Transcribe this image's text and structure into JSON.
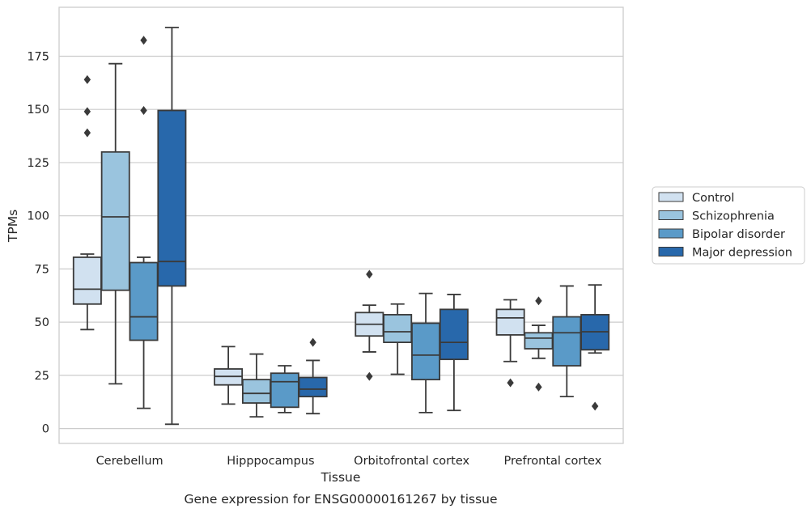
{
  "caption": "Gene expression for ENSG00000161267 by tissue",
  "chart_data": {
    "type": "box",
    "xlabel": "Tissue",
    "ylabel": "TPMs",
    "ylim": [
      -7,
      198
    ],
    "yticks": [
      0,
      25,
      50,
      75,
      100,
      125,
      150,
      175
    ],
    "grid": "horizontal",
    "legend_position": "right",
    "categories": [
      "Cerebellum",
      "Hipppocampus",
      "Orbitofrontal cortex",
      "Prefrontal cortex"
    ],
    "series": [
      {
        "name": "Control",
        "color": "#d1e1f0",
        "boxes": [
          {
            "whisker_low": 46.5,
            "q1": 58.5,
            "median": 65.5,
            "q3": 80.5,
            "whisker_high": 82,
            "outliers": [
              139,
              149,
              164
            ]
          },
          {
            "whisker_low": 11.5,
            "q1": 20.5,
            "median": 24.5,
            "q3": 28,
            "whisker_high": 38.5,
            "outliers": []
          },
          {
            "whisker_low": 36,
            "q1": 43.5,
            "median": 49,
            "q3": 54.5,
            "whisker_high": 58,
            "outliers": [
              72.5,
              24.5
            ]
          },
          {
            "whisker_low": 31.5,
            "q1": 44,
            "median": 52,
            "q3": 56,
            "whisker_high": 60.5,
            "outliers": [
              21.5
            ]
          }
        ]
      },
      {
        "name": "Schizophrenia",
        "color": "#9ac4de",
        "boxes": [
          {
            "whisker_low": 21,
            "q1": 65,
            "median": 99.5,
            "q3": 130,
            "whisker_high": 171.5,
            "outliers": []
          },
          {
            "whisker_low": 5.5,
            "q1": 12,
            "median": 16.5,
            "q3": 23,
            "whisker_high": 35,
            "outliers": []
          },
          {
            "whisker_low": 25.5,
            "q1": 40.5,
            "median": 45.5,
            "q3": 53.5,
            "whisker_high": 58.5,
            "outliers": []
          },
          {
            "whisker_low": 33,
            "q1": 37.5,
            "median": 42.5,
            "q3": 45,
            "whisker_high": 48.5,
            "outliers": [
              60,
              19.5
            ]
          }
        ]
      },
      {
        "name": "Bipolar disorder",
        "color": "#5a9ac8",
        "boxes": [
          {
            "whisker_low": 9.5,
            "q1": 41.5,
            "median": 52.5,
            "q3": 78,
            "whisker_high": 80.5,
            "outliers": [
              182.5,
              149.5
            ]
          },
          {
            "whisker_low": 7.5,
            "q1": 10,
            "median": 22,
            "q3": 26,
            "whisker_high": 29.5,
            "outliers": []
          },
          {
            "whisker_low": 7.5,
            "q1": 23,
            "median": 34.5,
            "q3": 49.5,
            "whisker_high": 63.5,
            "outliers": []
          },
          {
            "whisker_low": 15,
            "q1": 29.5,
            "median": 45,
            "q3": 52.5,
            "whisker_high": 67,
            "outliers": []
          }
        ]
      },
      {
        "name": "Major depression",
        "color": "#2868ab",
        "boxes": [
          {
            "whisker_low": 2,
            "q1": 67,
            "median": 78.5,
            "q3": 149.5,
            "whisker_high": 188.5,
            "outliers": []
          },
          {
            "whisker_low": 7,
            "q1": 15,
            "median": 18.5,
            "q3": 24,
            "whisker_high": 32,
            "outliers": [
              40.5
            ]
          },
          {
            "whisker_low": 8.5,
            "q1": 32.5,
            "median": 40.5,
            "q3": 56,
            "whisker_high": 63,
            "outliers": []
          },
          {
            "whisker_low": 35.5,
            "q1": 37,
            "median": 45.5,
            "q3": 53.5,
            "whisker_high": 67.5,
            "outliers": [
              10.5
            ]
          }
        ]
      }
    ]
  }
}
